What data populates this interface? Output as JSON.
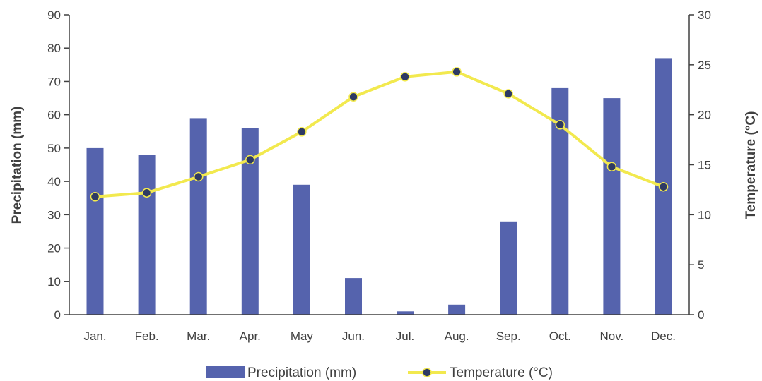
{
  "chart_data": {
    "type": "bar+line",
    "categories": [
      "Jan.",
      "Feb.",
      "Mar.",
      "Apr.",
      "May",
      "Jun.",
      "Jul.",
      "Aug.",
      "Sep.",
      "Oct.",
      "Nov.",
      "Dec."
    ],
    "series": [
      {
        "name": "Precipitation (mm)",
        "type": "bar",
        "axis": "left",
        "color": "#5563ad",
        "values": [
          50,
          48,
          59,
          56,
          39,
          11,
          1,
          3,
          28,
          68,
          65,
          77
        ]
      },
      {
        "name": "Temperature (°C)",
        "type": "line",
        "axis": "right",
        "color": "#f2e94e",
        "marker_color": "#2e3a63",
        "values": [
          11.8,
          12.2,
          13.8,
          15.5,
          18.3,
          21.8,
          23.8,
          24.3,
          22.1,
          19.0,
          14.8,
          12.8
        ]
      }
    ],
    "ylabel_left": "Precipitation (mm)",
    "ylabel_right": "Temperature (°C)",
    "ylim_left": [
      0,
      90
    ],
    "yticks_left": [
      0,
      10,
      20,
      30,
      40,
      50,
      60,
      70,
      80,
      90
    ],
    "ylim_right": [
      0,
      30
    ],
    "yticks_right": [
      0,
      5,
      10,
      15,
      20,
      25,
      30
    ],
    "grid": false,
    "legend": "bottom-center"
  }
}
